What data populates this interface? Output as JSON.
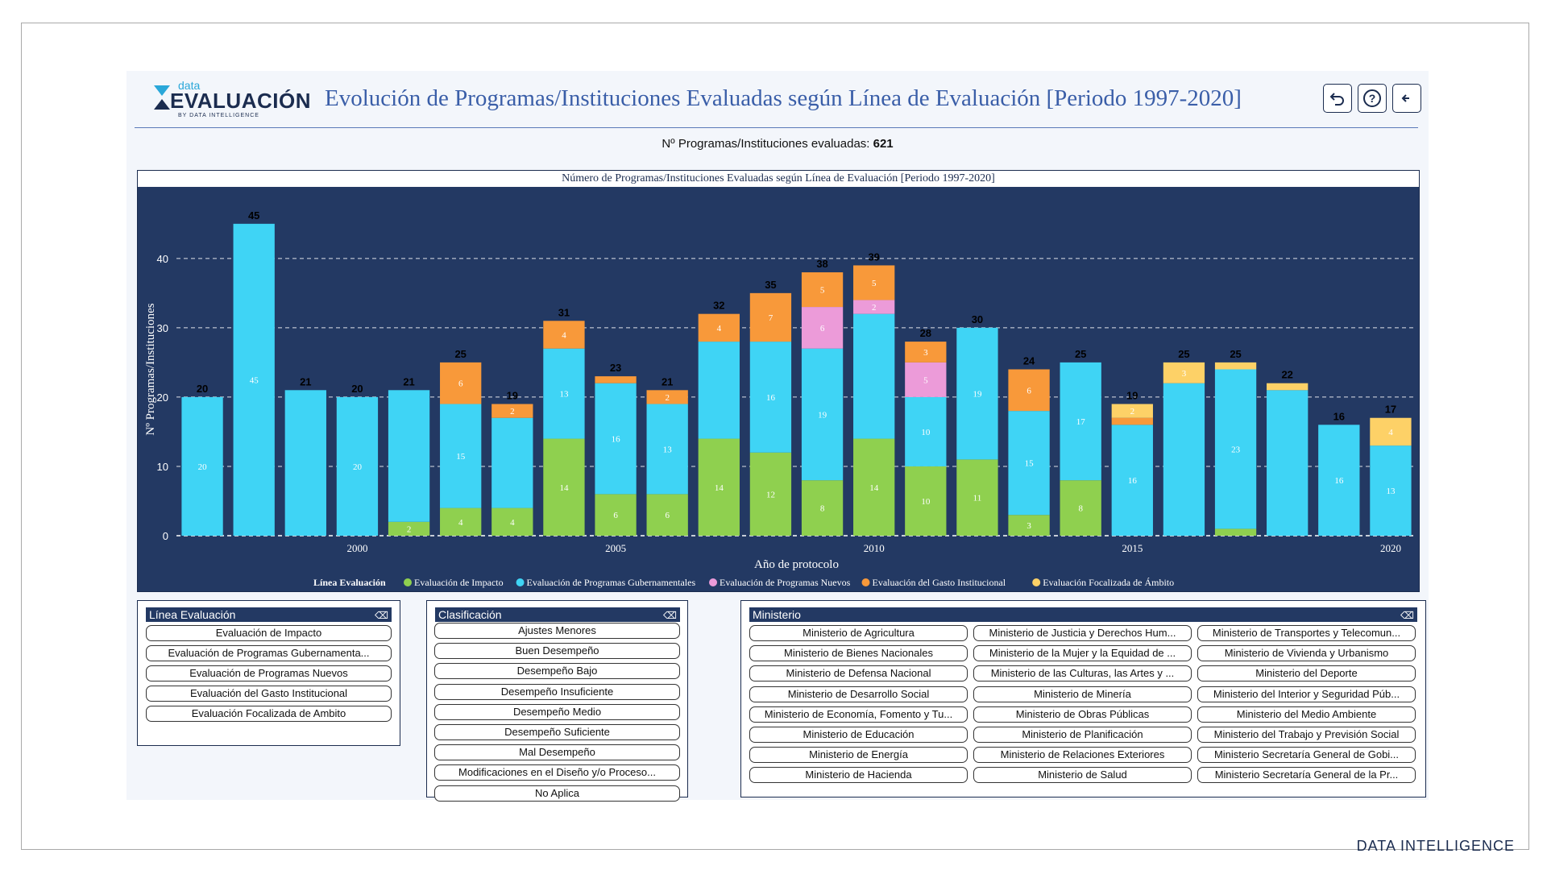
{
  "header": {
    "logo_small": "data",
    "logo_main": "EVALUACIÓN",
    "logo_by": "BY DATA INTELLIGENCE",
    "title": "Evolución de Programas/Instituciones Evaluadas según Línea de Evaluación [Periodo 1997-2020]",
    "buttons": [
      {
        "icon": "undo-icon"
      },
      {
        "icon": "help-icon"
      },
      {
        "icon": "back-arrow-icon"
      }
    ]
  },
  "summary": {
    "label": "Nº Programas/Instituciones evaluadas:",
    "value": "621"
  },
  "chart_data": {
    "type": "bar",
    "stacked": true,
    "title": "Número de Programas/Instituciones Evaluadas según Línea de Evaluación [Periodo 1997-2020]",
    "xlabel": "Año de protocolo",
    "ylabel": "Nº Programas/Instituciones",
    "ylim": [
      0,
      48
    ],
    "yticks": [
      0,
      10,
      20,
      30,
      40
    ],
    "x": [
      1997,
      1998,
      1999,
      2000,
      2001,
      2002,
      2003,
      2004,
      2005,
      2006,
      2007,
      2008,
      2009,
      2010,
      2011,
      2012,
      2013,
      2014,
      2015,
      2016,
      2017,
      2018,
      2019,
      2020
    ],
    "xticks": [
      2000,
      2005,
      2010,
      2015,
      2020
    ],
    "totals": [
      20,
      45,
      21,
      20,
      21,
      25,
      19,
      31,
      23,
      21,
      32,
      35,
      38,
      39,
      28,
      30,
      24,
      25,
      19,
      25,
      25,
      22,
      16,
      17
    ],
    "legend_title": "Línea Evaluación",
    "legend_position": "bottom",
    "grid": "dashed-horizontal",
    "series": [
      {
        "name": "Evaluación de Impacto",
        "color": "#8fd04f",
        "values": [
          0,
          0,
          0,
          0,
          2,
          4,
          4,
          14,
          6,
          6,
          14,
          12,
          8,
          14,
          10,
          11,
          3,
          8,
          0,
          0,
          1,
          0,
          0,
          0
        ],
        "labels": [
          "",
          "",
          "",
          "",
          "2",
          "4",
          "4",
          "14",
          "6",
          "6",
          "14",
          "12",
          "8",
          "14",
          "10",
          "11",
          "3",
          "8",
          "",
          "",
          "",
          "",
          "",
          ""
        ]
      },
      {
        "name": "Evaluación de Programas Gubernamentales",
        "color": "#3fd4f5",
        "values": [
          20,
          45,
          21,
          20,
          19,
          15,
          13,
          13,
          16,
          13,
          14,
          16,
          19,
          18,
          10,
          19,
          15,
          17,
          16,
          22,
          23,
          21,
          16,
          13
        ],
        "labels": [
          "20",
          "45",
          "",
          "20",
          "",
          "15",
          "",
          "13",
          "16",
          "13",
          "",
          "16",
          "19",
          "",
          "10",
          "19",
          "15",
          "17",
          "16",
          "",
          "23",
          "",
          "16",
          "13"
        ]
      },
      {
        "name": "Evaluación de Programas Nuevos",
        "color": "#ec9bd9",
        "values": [
          0,
          0,
          0,
          0,
          0,
          0,
          0,
          0,
          0,
          0,
          0,
          0,
          6,
          2,
          5,
          0,
          0,
          0,
          0,
          0,
          0,
          0,
          0,
          0
        ],
        "labels": [
          "",
          "",
          "",
          "",
          "",
          "",
          "",
          "",
          "",
          "",
          "",
          "",
          "6",
          "2",
          "5",
          "",
          "",
          "",
          "",
          "",
          "",
          "",
          "",
          ""
        ]
      },
      {
        "name": "Evaluación del Gasto Institucional",
        "color": "#f8993a",
        "values": [
          0,
          0,
          0,
          0,
          0,
          6,
          2,
          4,
          1,
          2,
          4,
          7,
          5,
          5,
          3,
          0,
          6,
          0,
          1,
          0,
          0,
          0,
          0,
          0
        ],
        "labels": [
          "",
          "",
          "",
          "",
          "",
          "6",
          "2",
          "4",
          "",
          "2",
          "4",
          "7",
          "5",
          "5",
          "3",
          "",
          "6",
          "",
          "",
          "",
          "",
          "",
          "",
          ""
        ]
      },
      {
        "name": "Evaluación Focalizada de Ámbito",
        "color": "#fdd167",
        "values": [
          0,
          0,
          0,
          0,
          0,
          0,
          0,
          0,
          0,
          0,
          0,
          0,
          0,
          0,
          0,
          0,
          0,
          0,
          2,
          3,
          1,
          1,
          0,
          4
        ],
        "labels": [
          "",
          "",
          "",
          "",
          "",
          "",
          "",
          "",
          "",
          "",
          "",
          "",
          "",
          "",
          "",
          "",
          "",
          "",
          "2",
          "3",
          "",
          "",
          "",
          "4"
        ]
      }
    ]
  },
  "filters": {
    "linea": {
      "title": "Línea Evaluación",
      "items": [
        "Evaluación de Impacto",
        "Evaluación de Programas Gubernamenta...",
        "Evaluación de Programas Nuevos",
        "Evaluación del Gasto Institucional",
        "Evaluación Focalizada de Ambito"
      ]
    },
    "clasificacion": {
      "title": "Clasificación",
      "items": [
        "Ajustes Menores",
        "Buen Desempeño",
        "Desempeño Bajo",
        "Desempeño Insuficiente",
        "Desempeño Medio",
        "Desempeño Suficiente",
        "Mal Desempeño",
        "Modificaciones en el Diseño y/o Proceso...",
        "No Aplica"
      ]
    },
    "ministerio": {
      "title": "Ministerio",
      "items": [
        "Ministerio de Agricultura",
        "Ministerio de Justicia y Derechos Hum...",
        "Ministerio de Transportes y Telecomun...",
        "Ministerio de Bienes Nacionales",
        "Ministerio de la Mujer y la Equidad de ...",
        "Ministerio de Vivienda y Urbanismo",
        "Ministerio de Defensa Nacional",
        "Ministerio de las Culturas, las Artes y ...",
        "Ministerio del Deporte",
        "Ministerio de Desarrollo Social",
        "Ministerio de Minería",
        "Ministerio del Interior y Seguridad Púb...",
        "Ministerio de Economía, Fomento y Tu...",
        "Ministerio de Obras Públicas",
        "Ministerio del Medio Ambiente",
        "Ministerio de Educación",
        "Ministerio de Planificación",
        "Ministerio del Trabajo y Previsión Social",
        "Ministerio de Energía",
        "Ministerio de Relaciones Exteriores",
        "Ministerio Secretaría General de Gobi...",
        "Ministerio de Hacienda",
        "Ministerio de Salud",
        "Ministerio Secretaría General de la Pr..."
      ]
    }
  },
  "footer": {
    "brand": "DATA INTELLIGENCE"
  }
}
